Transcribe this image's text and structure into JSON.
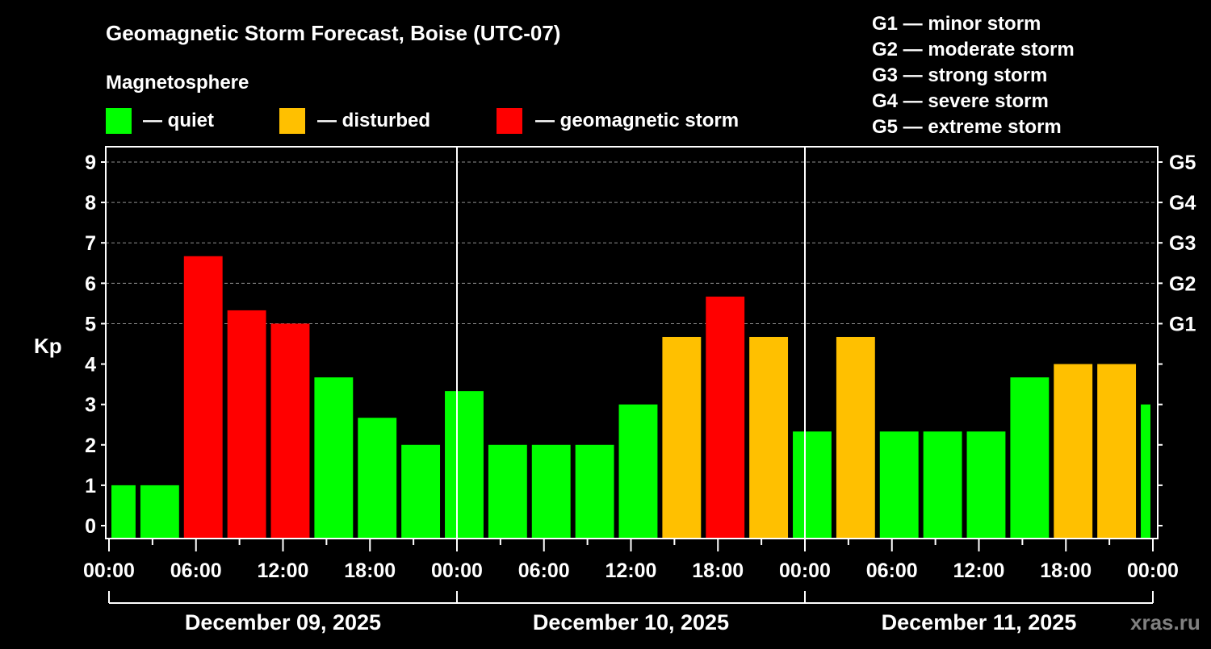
{
  "title": "Geomagnetic Storm Forecast, Boise (UTC-07)",
  "legend": {
    "heading": "Magnetosphere",
    "items": [
      {
        "label": "— quiet",
        "color": "#00ff00"
      },
      {
        "label": "— disturbed",
        "color": "#ffc000"
      },
      {
        "label": "— geomagnetic storm",
        "color": "#ff0000"
      }
    ]
  },
  "scale_legend": [
    "G1 — minor storm",
    "G2 — moderate storm",
    "G3 — strong storm",
    "G4 — severe storm",
    "G5 — extreme storm"
  ],
  "watermark": "xras.ru",
  "chart_data": {
    "type": "bar",
    "title": "Geomagnetic Storm Forecast, Boise (UTC-07)",
    "ylabel": "Kp",
    "ylim": [
      0,
      9
    ],
    "yticks": [
      "0",
      "1",
      "2",
      "3",
      "4",
      "5",
      "6",
      "7",
      "8",
      "9"
    ],
    "right_ticks": [
      {
        "kp": 5,
        "label": "G1"
      },
      {
        "kp": 6,
        "label": "G2"
      },
      {
        "kp": 7,
        "label": "G3"
      },
      {
        "kp": 8,
        "label": "G4"
      },
      {
        "kp": 9,
        "label": "G5"
      }
    ],
    "grid": true,
    "x_hours_range": [
      0,
      72
    ],
    "xtick_labels": [
      "00:00",
      "06:00",
      "12:00",
      "18:00",
      "00:00",
      "06:00",
      "12:00",
      "18:00",
      "00:00",
      "06:00",
      "12:00",
      "18:00",
      "00:00"
    ],
    "days": [
      "December 09, 2025",
      "December 10, 2025",
      "December 11, 2025"
    ],
    "bar_start_hour": -1,
    "bar_hours": 3,
    "values": [
      1.0,
      1.0,
      6.67,
      5.33,
      5.0,
      3.67,
      2.67,
      2.0,
      3.33,
      2.0,
      2.0,
      2.0,
      3.0,
      4.67,
      5.67,
      4.67,
      2.33,
      4.67,
      2.33,
      2.33,
      2.33,
      3.67,
      4.0,
      4.0,
      3.0
    ],
    "levels": [
      "quiet",
      "quiet",
      "storm",
      "storm",
      "storm",
      "quiet",
      "quiet",
      "quiet",
      "quiet",
      "quiet",
      "quiet",
      "quiet",
      "quiet",
      "disturbed",
      "storm",
      "disturbed",
      "quiet",
      "disturbed",
      "quiet",
      "quiet",
      "quiet",
      "quiet",
      "disturbed",
      "disturbed",
      "quiet"
    ],
    "colors": {
      "quiet": "#00ff00",
      "disturbed": "#ffc000",
      "storm": "#ff0000"
    }
  }
}
